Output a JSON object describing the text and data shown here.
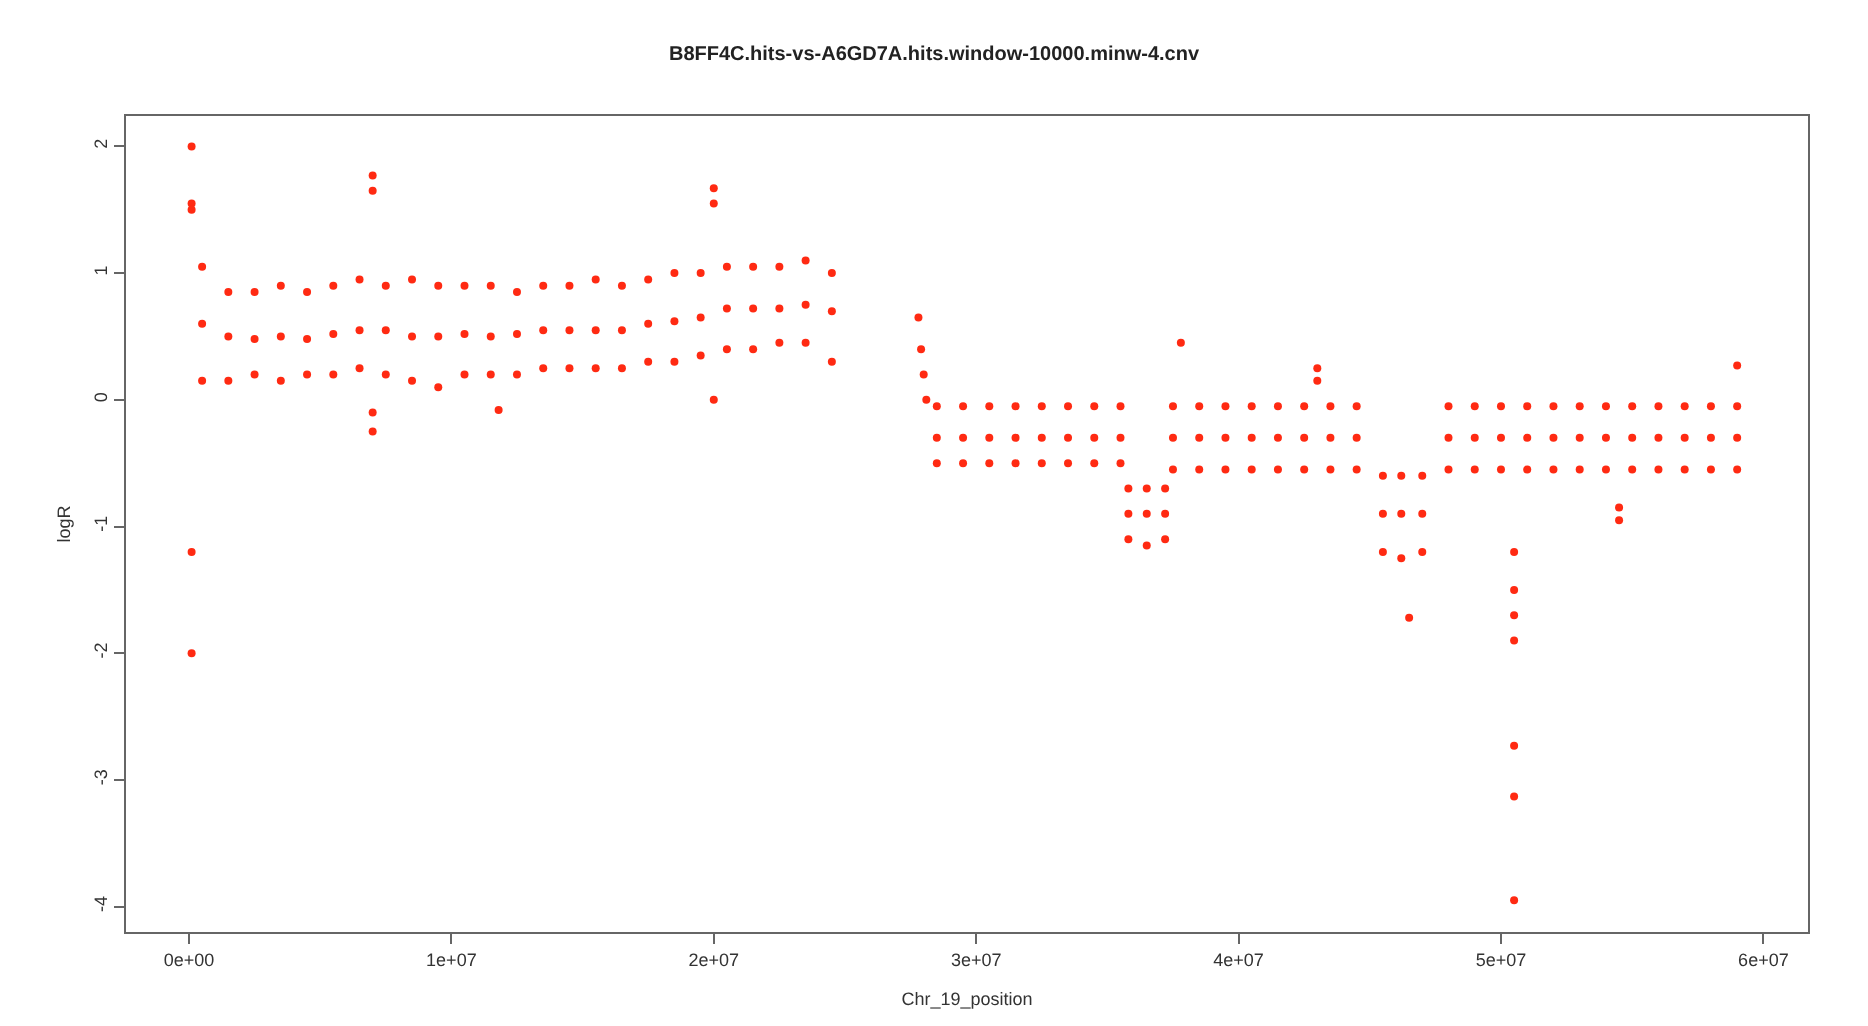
{
  "chart_data": {
    "type": "scatter",
    "title": "B8FF4C.hits-vs-A6GD7A.hits.window-10000.minw-4.cnv",
    "xlabel": "Chr_19_position",
    "ylabel": "logR",
    "xlim": [
      -2400000,
      61700000
    ],
    "xticks": [
      {
        "value": 0,
        "label": "0e+00"
      },
      {
        "value": 10000000,
        "label": "1e+07"
      },
      {
        "value": 20000000,
        "label": "2e+07"
      },
      {
        "value": 30000000,
        "label": "3e+07"
      },
      {
        "value": 40000000,
        "label": "4e+07"
      },
      {
        "value": 50000000,
        "label": "5e+07"
      },
      {
        "value": 60000000,
        "label": "6e+07"
      }
    ],
    "ylim": [
      -4.2,
      2.24
    ],
    "yticks": [
      -4,
      -3,
      -2,
      -1,
      0,
      1,
      2
    ],
    "grid": false,
    "marker": "circle",
    "series": [
      {
        "color": "#ff2a12",
        "x": [
          500000,
          500000,
          500000,
          1500000,
          1500000,
          1500000,
          2500000,
          2500000,
          2500000,
          3500000,
          3500000,
          3500000,
          4500000,
          4500000,
          4500000,
          5500000,
          5500000,
          5500000,
          6500000,
          6500000,
          6500000,
          7500000,
          7500000,
          7500000,
          8500000,
          8500000,
          8500000,
          9500000,
          9500000,
          9500000,
          10500000,
          10500000,
          10500000,
          11500000,
          11500000,
          11500000,
          12500000,
          12500000,
          12500000,
          13500000,
          13500000,
          13500000,
          14500000,
          14500000,
          14500000,
          15500000,
          15500000,
          15500000,
          16500000,
          16500000,
          16500000,
          17500000,
          17500000,
          17500000,
          18500000,
          18500000,
          18500000,
          19500000,
          19500000,
          19500000,
          20500000,
          20500000,
          20500000,
          21500000,
          21500000,
          21500000,
          22500000,
          22500000,
          22500000,
          23500000,
          23500000,
          23500000,
          24500000,
          24500000,
          24500000,
          27800000,
          27900000,
          28000000,
          28100000,
          28500000,
          28500000,
          28500000,
          29500000,
          29500000,
          29500000,
          30500000,
          30500000,
          30500000,
          31500000,
          31500000,
          31500000,
          32500000,
          32500000,
          32500000,
          33500000,
          33500000,
          33500000,
          34500000,
          34500000,
          34500000,
          35500000,
          35500000,
          35500000,
          35800000,
          35800000,
          35800000,
          36500000,
          36500000,
          36500000,
          37200000,
          37200000,
          37200000,
          37500000,
          37500000,
          37500000,
          38500000,
          38500000,
          38500000,
          39500000,
          39500000,
          39500000,
          40500000,
          40500000,
          40500000,
          41500000,
          41500000,
          41500000,
          42500000,
          42500000,
          42500000,
          43500000,
          43500000,
          43500000,
          44500000,
          44500000,
          44500000,
          45500000,
          45500000,
          45500000,
          46200000,
          46200000,
          46200000,
          47000000,
          47000000,
          47000000,
          48000000,
          48000000,
          48000000,
          49000000,
          49000000,
          49000000,
          50000000,
          50000000,
          50000000,
          51000000,
          51000000,
          51000000,
          52000000,
          52000000,
          52000000,
          53000000,
          53000000,
          53000000,
          54000000,
          54000000,
          54000000,
          55000000,
          55000000,
          55000000,
          56000000,
          56000000,
          56000000,
          57000000,
          57000000,
          57000000,
          58000000,
          58000000,
          58000000,
          59000000,
          59000000,
          59000000,
          100000,
          100000,
          100000,
          100000,
          100000,
          7000000,
          7000000,
          7000000,
          7000000,
          20000000,
          20000000,
          20000000,
          11800000,
          50500000,
          50500000,
          50500000,
          50500000,
          50500000,
          50500000,
          50500000,
          46500000,
          37800000,
          43000000,
          43000000,
          54500000,
          54500000,
          59000000
        ],
        "values": [
          1.05,
          0.6,
          0.15,
          0.85,
          0.5,
          0.15,
          0.85,
          0.48,
          0.2,
          0.9,
          0.5,
          0.15,
          0.85,
          0.48,
          0.2,
          0.9,
          0.52,
          0.2,
          0.95,
          0.55,
          0.25,
          0.9,
          0.55,
          0.2,
          0.95,
          0.5,
          0.15,
          0.9,
          0.5,
          0.1,
          0.9,
          0.52,
          0.2,
          0.9,
          0.5,
          0.2,
          0.85,
          0.52,
          0.2,
          0.9,
          0.55,
          0.25,
          0.9,
          0.55,
          0.25,
          0.95,
          0.55,
          0.25,
          0.9,
          0.55,
          0.25,
          0.95,
          0.6,
          0.3,
          1.0,
          0.62,
          0.3,
          1.0,
          0.65,
          0.35,
          1.05,
          0.72,
          0.4,
          1.05,
          0.72,
          0.4,
          1.05,
          0.72,
          0.45,
          1.1,
          0.75,
          0.45,
          1.0,
          0.7,
          0.3,
          0.65,
          0.4,
          0.2,
          0.0,
          -0.05,
          -0.3,
          -0.5,
          -0.05,
          -0.3,
          -0.5,
          -0.05,
          -0.3,
          -0.5,
          -0.05,
          -0.3,
          -0.5,
          -0.05,
          -0.3,
          -0.5,
          -0.05,
          -0.3,
          -0.5,
          -0.05,
          -0.3,
          -0.5,
          -0.05,
          -0.3,
          -0.5,
          -0.7,
          -0.9,
          -1.1,
          -0.7,
          -0.9,
          -1.15,
          -0.7,
          -0.9,
          -1.1,
          -0.05,
          -0.3,
          -0.55,
          -0.05,
          -0.3,
          -0.55,
          -0.05,
          -0.3,
          -0.55,
          -0.05,
          -0.3,
          -0.55,
          -0.05,
          -0.3,
          -0.55,
          -0.05,
          -0.3,
          -0.55,
          -0.05,
          -0.3,
          -0.55,
          -0.05,
          -0.3,
          -0.55,
          -0.6,
          -0.9,
          -1.2,
          -0.6,
          -0.9,
          -1.25,
          -0.6,
          -0.9,
          -1.2,
          -0.05,
          -0.3,
          -0.55,
          -0.05,
          -0.3,
          -0.55,
          -0.05,
          -0.3,
          -0.55,
          -0.05,
          -0.3,
          -0.55,
          -0.05,
          -0.3,
          -0.55,
          -0.05,
          -0.3,
          -0.55,
          -0.05,
          -0.3,
          -0.55,
          -0.05,
          -0.3,
          -0.55,
          -0.05,
          -0.3,
          -0.55,
          -0.05,
          -0.3,
          -0.55,
          -0.05,
          -0.3,
          -0.55,
          -0.05,
          -0.3,
          -0.55,
          2.0,
          1.55,
          1.5,
          -1.2,
          -2.0,
          1.77,
          1.65,
          -0.1,
          -0.25,
          1.67,
          1.55,
          0.0,
          -0.08,
          -1.2,
          -1.5,
          -1.7,
          -1.9,
          -2.73,
          -3.13,
          -3.95,
          -1.72,
          0.45,
          0.25,
          0.15,
          -0.85,
          -0.95,
          0.27
        ]
      }
    ]
  }
}
